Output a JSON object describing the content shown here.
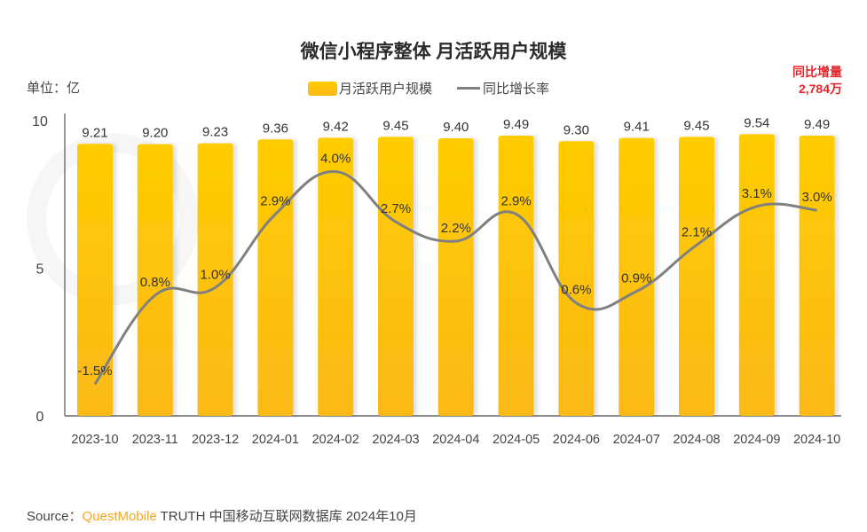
{
  "title": "微信小程序整体 月活跃用户规模",
  "unit_label": "单位：亿",
  "legend": {
    "bar_label": "月活跃用户规模",
    "line_label": "同比增长率"
  },
  "yoy_annotation": {
    "label": "同比增量",
    "value": "2,784万"
  },
  "source": {
    "prefix": "Source：",
    "brand": "QuestMobile",
    "rest": " TRUTH 中国移动互联网数据库 2024年10月"
  },
  "colors": {
    "bar_top": "#ffcc00",
    "bar_bottom": "#fbb917",
    "line": "#808080",
    "annotation": "#e8242b",
    "brand": "#f5a623"
  },
  "chart_data": {
    "type": "bar",
    "title": "微信小程序整体 月活跃用户规模",
    "xlabel": "",
    "ylabel": "单位：亿",
    "ylim": [
      0,
      10
    ],
    "yticks": [
      "0",
      "5",
      "10"
    ],
    "categories": [
      "2023-10",
      "2023-11",
      "2023-12",
      "2024-01",
      "2024-02",
      "2024-03",
      "2024-04",
      "2024-05",
      "2024-06",
      "2024-07",
      "2024-08",
      "2024-09",
      "2024-10"
    ],
    "series": [
      {
        "name": "月活跃用户规模",
        "type": "bar",
        "values": [
          9.21,
          9.2,
          9.23,
          9.36,
          9.42,
          9.45,
          9.4,
          9.49,
          9.3,
          9.41,
          9.45,
          9.54,
          9.49
        ],
        "labels": [
          "9.21",
          "9.20",
          "9.23",
          "9.36",
          "9.42",
          "9.45",
          "9.40",
          "9.49",
          "9.30",
          "9.41",
          "9.45",
          "9.54",
          "9.49"
        ]
      },
      {
        "name": "同比增长率",
        "type": "line",
        "axis": "secondary",
        "ylim": [
          -2,
          5
        ],
        "values": [
          -1.5,
          0.8,
          1.0,
          2.9,
          4.0,
          2.7,
          2.2,
          2.9,
          0.6,
          0.9,
          2.1,
          3.1,
          3.0
        ],
        "labels": [
          "-1.5%",
          "0.8%",
          "1.0%",
          "2.9%",
          "4.0%",
          "2.7%",
          "2.2%",
          "2.9%",
          "0.6%",
          "0.9%",
          "2.1%",
          "3.1%",
          "3.0%"
        ]
      }
    ],
    "legend_position": "top",
    "grid": false
  }
}
